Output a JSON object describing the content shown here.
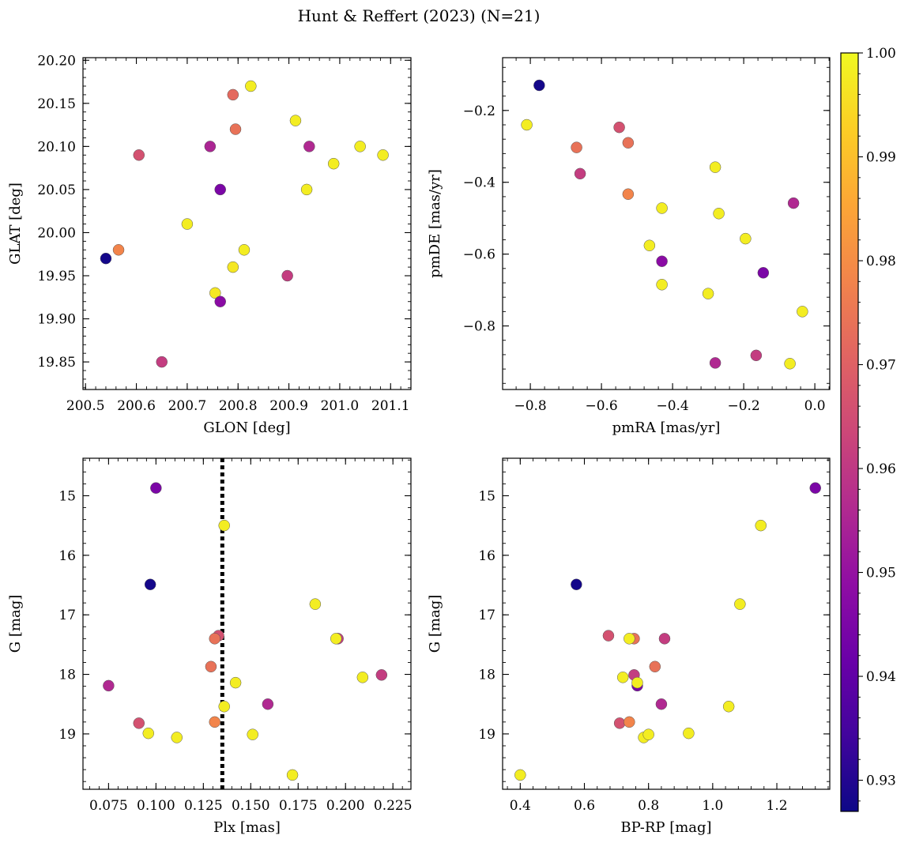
{
  "title": "Hunt & Reffert (2023) (N=21)",
  "colorbar": {
    "min": 0.927,
    "max": 1.0,
    "ticks": [
      0.93,
      0.94,
      0.95,
      0.96,
      0.97,
      0.98,
      0.99,
      1.0
    ],
    "tick_labels": [
      "0.93",
      "0.94",
      "0.95",
      "0.96",
      "0.97",
      "0.98",
      "0.99",
      "1.00"
    ],
    "colormap": "plasma"
  },
  "chart_data": [
    {
      "type": "scatter",
      "xlabel": "GLON [deg]",
      "ylabel": "GLAT [deg]",
      "xlim": [
        200.495,
        201.14
      ],
      "ylim": [
        19.818,
        20.203
      ],
      "x_ticks": [
        200.5,
        200.6,
        200.7,
        200.8,
        200.9,
        201.0,
        201.1
      ],
      "x_tick_labels": [
        "200.5",
        "200.6",
        "200.7",
        "200.8",
        "200.9",
        "201.0",
        "201.1"
      ],
      "y_ticks": [
        19.85,
        19.9,
        19.95,
        20.0,
        20.05,
        20.1,
        20.15,
        20.2
      ],
      "y_tick_labels": [
        "19.85",
        "19.90",
        "19.95",
        "20.00",
        "20.05",
        "20.10",
        "20.15",
        "20.20"
      ],
      "y_inverted": false,
      "vline": null,
      "points": [
        {
          "x": 200.54,
          "y": 19.97,
          "c": 0.928
        },
        {
          "x": 200.565,
          "y": 19.98,
          "c": 0.978
        },
        {
          "x": 200.605,
          "y": 20.09,
          "c": 0.966
        },
        {
          "x": 200.65,
          "y": 19.85,
          "c": 0.961
        },
        {
          "x": 200.7,
          "y": 20.01,
          "c": 0.998
        },
        {
          "x": 200.745,
          "y": 20.1,
          "c": 0.955
        },
        {
          "x": 200.755,
          "y": 19.93,
          "c": 0.997
        },
        {
          "x": 200.765,
          "y": 20.05,
          "c": 0.945
        },
        {
          "x": 200.765,
          "y": 19.92,
          "c": 0.948
        },
        {
          "x": 200.79,
          "y": 20.16,
          "c": 0.972
        },
        {
          "x": 200.795,
          "y": 20.12,
          "c": 0.974
        },
        {
          "x": 200.79,
          "y": 19.96,
          "c": 0.997
        },
        {
          "x": 200.812,
          "y": 19.98,
          "c": 0.998
        },
        {
          "x": 200.825,
          "y": 20.17,
          "c": 0.998
        },
        {
          "x": 200.897,
          "y": 19.95,
          "c": 0.961
        },
        {
          "x": 200.913,
          "y": 20.13,
          "c": 0.998
        },
        {
          "x": 200.935,
          "y": 20.05,
          "c": 0.998
        },
        {
          "x": 200.94,
          "y": 20.1,
          "c": 0.956
        },
        {
          "x": 200.988,
          "y": 20.08,
          "c": 0.998
        },
        {
          "x": 201.04,
          "y": 20.1,
          "c": 0.998
        },
        {
          "x": 201.085,
          "y": 20.09,
          "c": 0.998
        }
      ]
    },
    {
      "type": "scatter",
      "xlabel": "pmRA [mas/yr]",
      "ylabel": "pmDE [mas/yr]",
      "xlim": [
        -0.878,
        0.042
      ],
      "ylim": [
        -0.977,
        -0.053
      ],
      "x_ticks": [
        -0.8,
        -0.6,
        -0.4,
        -0.2,
        0.0
      ],
      "x_tick_labels": [
        "−0.8",
        "−0.6",
        "−0.4",
        "−0.2",
        "0.0"
      ],
      "y_ticks": [
        -0.8,
        -0.6,
        -0.4,
        -0.2
      ],
      "y_tick_labels": [
        "−0.8",
        "−0.6",
        "−0.4",
        "−0.2"
      ],
      "y_inverted": false,
      "vline": null,
      "points": [
        {
          "x": -0.775,
          "y": -0.13,
          "c": 0.928
        },
        {
          "x": -0.81,
          "y": -0.24,
          "c": 0.998
        },
        {
          "x": -0.55,
          "y": -0.247,
          "c": 0.966
        },
        {
          "x": -0.67,
          "y": -0.303,
          "c": 0.974
        },
        {
          "x": -0.525,
          "y": -0.29,
          "c": 0.974
        },
        {
          "x": -0.66,
          "y": -0.376,
          "c": 0.961
        },
        {
          "x": -0.525,
          "y": -0.433,
          "c": 0.978
        },
        {
          "x": -0.28,
          "y": -0.358,
          "c": 0.998
        },
        {
          "x": -0.43,
          "y": -0.472,
          "c": 0.998
        },
        {
          "x": -0.27,
          "y": -0.487,
          "c": 0.998
        },
        {
          "x": -0.06,
          "y": -0.458,
          "c": 0.956
        },
        {
          "x": -0.465,
          "y": -0.576,
          "c": 0.998
        },
        {
          "x": -0.195,
          "y": -0.557,
          "c": 0.998
        },
        {
          "x": -0.43,
          "y": -0.62,
          "c": 0.948
        },
        {
          "x": -0.145,
          "y": -0.652,
          "c": 0.945
        },
        {
          "x": -0.43,
          "y": -0.685,
          "c": 0.998
        },
        {
          "x": -0.3,
          "y": -0.71,
          "c": 0.998
        },
        {
          "x": -0.035,
          "y": -0.76,
          "c": 0.998
        },
        {
          "x": -0.28,
          "y": -0.903,
          "c": 0.956
        },
        {
          "x": -0.165,
          "y": -0.882,
          "c": 0.961
        },
        {
          "x": -0.07,
          "y": -0.905,
          "c": 0.998
        }
      ]
    },
    {
      "type": "scatter",
      "xlabel": "Plx [mas]",
      "ylabel": "G [mag]",
      "xlim": [
        0.0615,
        0.2345
      ],
      "ylim": [
        19.93,
        14.37
      ],
      "x_ticks": [
        0.075,
        0.1,
        0.125,
        0.15,
        0.175,
        0.2,
        0.225
      ],
      "x_tick_labels": [
        "0.075",
        "0.100",
        "0.125",
        "0.150",
        "0.175",
        "0.200",
        "0.225"
      ],
      "y_ticks": [
        15,
        16,
        17,
        18,
        19
      ],
      "y_tick_labels": [
        "15",
        "16",
        "17",
        "18",
        "19"
      ],
      "y_inverted": true,
      "vline": 0.135,
      "points": [
        {
          "x": 0.1,
          "y": 14.87,
          "c": 0.945
        },
        {
          "x": 0.136,
          "y": 15.5,
          "c": 0.998
        },
        {
          "x": 0.097,
          "y": 16.49,
          "c": 0.928
        },
        {
          "x": 0.184,
          "y": 16.82,
          "c": 0.998
        },
        {
          "x": 0.133,
          "y": 17.35,
          "c": 0.966
        },
        {
          "x": 0.131,
          "y": 17.4,
          "c": 0.974
        },
        {
          "x": 0.196,
          "y": 17.4,
          "c": 0.961
        },
        {
          "x": 0.195,
          "y": 17.4,
          "c": 0.998
        },
        {
          "x": 0.129,
          "y": 17.87,
          "c": 0.974
        },
        {
          "x": 0.219,
          "y": 18.01,
          "c": 0.961
        },
        {
          "x": 0.209,
          "y": 18.05,
          "c": 0.998
        },
        {
          "x": 0.142,
          "y": 18.14,
          "c": 0.998
        },
        {
          "x": 0.075,
          "y": 18.19,
          "c": 0.956
        },
        {
          "x": 0.159,
          "y": 18.5,
          "c": 0.956
        },
        {
          "x": 0.136,
          "y": 18.54,
          "c": 0.998
        },
        {
          "x": 0.091,
          "y": 18.82,
          "c": 0.966
        },
        {
          "x": 0.131,
          "y": 18.8,
          "c": 0.978
        },
        {
          "x": 0.096,
          "y": 18.99,
          "c": 0.998
        },
        {
          "x": 0.111,
          "y": 19.06,
          "c": 0.998
        },
        {
          "x": 0.151,
          "y": 19.01,
          "c": 0.998
        },
        {
          "x": 0.172,
          "y": 19.69,
          "c": 0.998
        }
      ]
    },
    {
      "type": "scatter",
      "xlabel": "BP-RP [mag]",
      "ylabel": "G [mag]",
      "xlim": [
        0.345,
        1.365
      ],
      "ylim": [
        19.93,
        14.37
      ],
      "x_ticks": [
        0.4,
        0.6,
        0.8,
        1.0,
        1.2
      ],
      "x_tick_labels": [
        "0.4",
        "0.6",
        "0.8",
        "1.0",
        "1.2"
      ],
      "y_ticks": [
        15,
        16,
        17,
        18,
        19
      ],
      "y_tick_labels": [
        "15",
        "16",
        "17",
        "18",
        "19"
      ],
      "y_inverted": true,
      "vline": null,
      "points": [
        {
          "x": 1.32,
          "y": 14.87,
          "c": 0.945
        },
        {
          "x": 1.15,
          "y": 15.5,
          "c": 0.998
        },
        {
          "x": 0.575,
          "y": 16.49,
          "c": 0.928
        },
        {
          "x": 1.085,
          "y": 16.82,
          "c": 0.998
        },
        {
          "x": 0.675,
          "y": 17.35,
          "c": 0.966
        },
        {
          "x": 0.755,
          "y": 17.4,
          "c": 0.974
        },
        {
          "x": 0.74,
          "y": 17.4,
          "c": 0.998
        },
        {
          "x": 0.85,
          "y": 17.4,
          "c": 0.961
        },
        {
          "x": 0.82,
          "y": 17.87,
          "c": 0.974
        },
        {
          "x": 0.755,
          "y": 18.01,
          "c": 0.961
        },
        {
          "x": 0.72,
          "y": 18.05,
          "c": 0.998
        },
        {
          "x": 0.765,
          "y": 18.19,
          "c": 0.945
        },
        {
          "x": 0.765,
          "y": 18.14,
          "c": 0.998
        },
        {
          "x": 0.84,
          "y": 18.5,
          "c": 0.956
        },
        {
          "x": 1.05,
          "y": 18.54,
          "c": 0.998
        },
        {
          "x": 0.71,
          "y": 18.82,
          "c": 0.966
        },
        {
          "x": 0.74,
          "y": 18.8,
          "c": 0.978
        },
        {
          "x": 0.925,
          "y": 18.99,
          "c": 0.998
        },
        {
          "x": 0.785,
          "y": 19.06,
          "c": 0.998
        },
        {
          "x": 0.8,
          "y": 19.01,
          "c": 0.998
        },
        {
          "x": 0.4,
          "y": 19.69,
          "c": 0.998
        }
      ]
    }
  ]
}
